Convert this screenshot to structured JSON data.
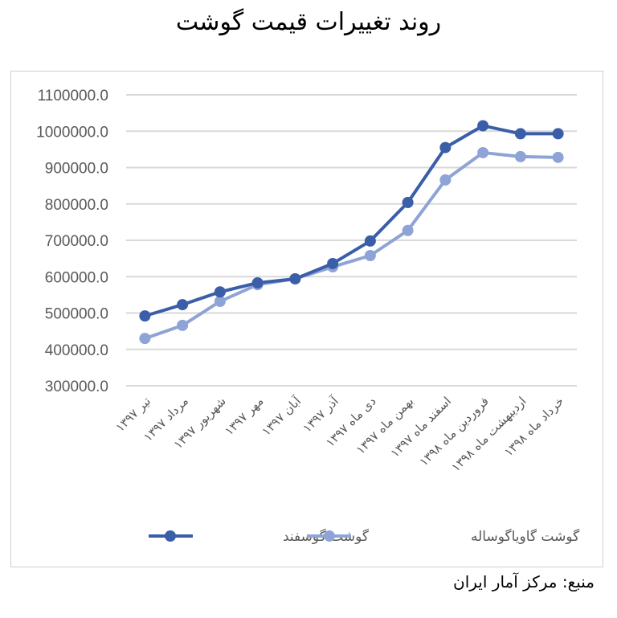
{
  "title": "روند تغییرات قیمت گوشت",
  "source": "منبع: مرکز آمار ایران",
  "colors": {
    "series_dark": "#3a5ea8",
    "series_light": "#8fa4d6",
    "grid": "#d9d9d9",
    "axis_text": "#595959"
  },
  "legend": [
    {
      "label": "گوشت گوسفند",
      "color": "#3a5ea8"
    },
    {
      "label": "گوشت گاویاگوساله",
      "color": "#8fa4d6"
    }
  ],
  "chart_data": {
    "type": "line",
    "title": "روند تغییرات قیمت گوشت",
    "xlabel": "",
    "ylabel": "",
    "ylim": [
      300000,
      1100000
    ],
    "yticks": [
      "1100000.0",
      "1000000.0",
      "900000.0",
      "800000.0",
      "700000.0",
      "600000.0",
      "500000.0",
      "400000.0",
      "300000.0"
    ],
    "grid": true,
    "legend_position": "bottom",
    "categories": [
      "تیر ۱۳۹۷",
      "مرداد ۱۳۹۷",
      "شهریور ۱۳۹۷",
      "مهر ۱۳۹۷",
      "آبان ۱۳۹۷",
      "آذر ۱۳۹۷",
      "دی ماه ۱۳۹۷",
      "بهمن ماه ۱۳۹۷",
      "اسفند ماه ۱۳۹۷",
      "فروردین ماه ۱۳۹۸",
      "اردیبهشت ماه ۱۳۹۸",
      "خرداد ماه ۱۳۹۸"
    ],
    "series": [
      {
        "name": "گوشت گوسفند",
        "values": [
          492000,
          523000,
          558000,
          583000,
          594000,
          636000,
          698000,
          804000,
          955000,
          1015000,
          993000,
          993000
        ]
      },
      {
        "name": "گوشت گاویاگوساله",
        "values": [
          430000,
          466000,
          532000,
          578000,
          594000,
          627000,
          658000,
          727000,
          866000,
          941000,
          930000,
          928000
        ]
      }
    ]
  }
}
